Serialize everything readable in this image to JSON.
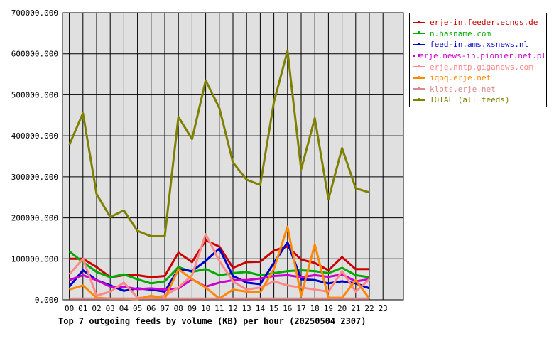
{
  "chart_data": {
    "type": "line",
    "title": "Top 7 outgoing feeds by volume (KB) per hour (20250504 2307)",
    "x_ticks": [
      "00",
      "01",
      "02",
      "03",
      "04",
      "05",
      "06",
      "07",
      "08",
      "09",
      "10",
      "11",
      "12",
      "13",
      "14",
      "15",
      "16",
      "17",
      "18",
      "19",
      "20",
      "21",
      "22",
      "23"
    ],
    "y_ticks": [
      "0.000",
      "100000.000",
      "200000.000",
      "300000.000",
      "400000.000",
      "500000.000",
      "600000.000",
      "700000.000"
    ],
    "ylim": [
      0,
      700000
    ],
    "grid": true,
    "legend_position": "right",
    "series": [
      {
        "name": "erje-in.feeder.ecngs.de",
        "color": "#cc0000",
        "values": [
          100000,
          100000,
          80000,
          55000,
          60000,
          60000,
          55000,
          58000,
          115000,
          92000,
          145000,
          130000,
          78000,
          92000,
          93000,
          120000,
          130000,
          98000,
          90000,
          72000,
          104000,
          75000,
          75000
        ]
      },
      {
        "name": "n.hasname.com",
        "color": "#00aa00",
        "values": [
          118000,
          92000,
          68000,
          55000,
          62000,
          50000,
          40000,
          45000,
          80000,
          68000,
          75000,
          60000,
          65000,
          68000,
          60000,
          65000,
          70000,
          72000,
          70000,
          65000,
          78000,
          60000,
          55000
        ]
      },
      {
        "name": "feed-in.ams.xsnews.nl",
        "color": "#0000cc",
        "values": [
          32000,
          72000,
          48000,
          35000,
          22000,
          28000,
          25000,
          20000,
          75000,
          70000,
          95000,
          125000,
          58000,
          42000,
          38000,
          90000,
          140000,
          50000,
          48000,
          40000,
          45000,
          40000,
          28000
        ]
      },
      {
        "name": "erje.news-in.pionier.net.pl",
        "color": "#cc00cc",
        "values": [
          48000,
          60000,
          48000,
          32000,
          32000,
          26000,
          28000,
          25000,
          28000,
          50000,
          32000,
          42000,
          48000,
          48000,
          52000,
          58000,
          60000,
          55000,
          60000,
          56000,
          62000,
          45000,
          50000
        ]
      },
      {
        "name": "erje.nntp.giganews.com",
        "color": "#ff8888",
        "values": [
          62000,
          100000,
          10000,
          20000,
          42000,
          5000,
          5000,
          10000,
          30000,
          60000,
          160000,
          95000,
          45000,
          25000,
          30000,
          45000,
          35000,
          30000,
          25000,
          20000,
          70000,
          20000,
          50000
        ]
      },
      {
        "name": "iqoq.erje.net",
        "color": "#ff8800",
        "values": [
          25000,
          35000,
          5000,
          3000,
          3000,
          2000,
          10000,
          3000,
          75000,
          50000,
          30000,
          3000,
          25000,
          20000,
          18000,
          75000,
          178000,
          10000,
          135000,
          5000,
          5000,
          48000,
          3000
        ]
      },
      {
        "name": "klots.erje.net",
        "color": "#dd8888",
        "values": [
          3000,
          3000,
          3000,
          3000,
          3000,
          3000,
          3000,
          3000,
          3000,
          3000,
          3000,
          3000,
          3000,
          3000,
          3000,
          3000,
          3000,
          3000,
          3000,
          3000,
          3000,
          3000,
          3000
        ]
      },
      {
        "name": "TOTAL (all feeds)",
        "color": "#808000",
        "values": [
          378000,
          455000,
          258000,
          202000,
          218000,
          168000,
          155000,
          155000,
          446000,
          392000,
          535000,
          468000,
          335000,
          293000,
          280000,
          482000,
          607000,
          318000,
          443000,
          245000,
          370000,
          272000,
          262000
        ]
      }
    ]
  }
}
